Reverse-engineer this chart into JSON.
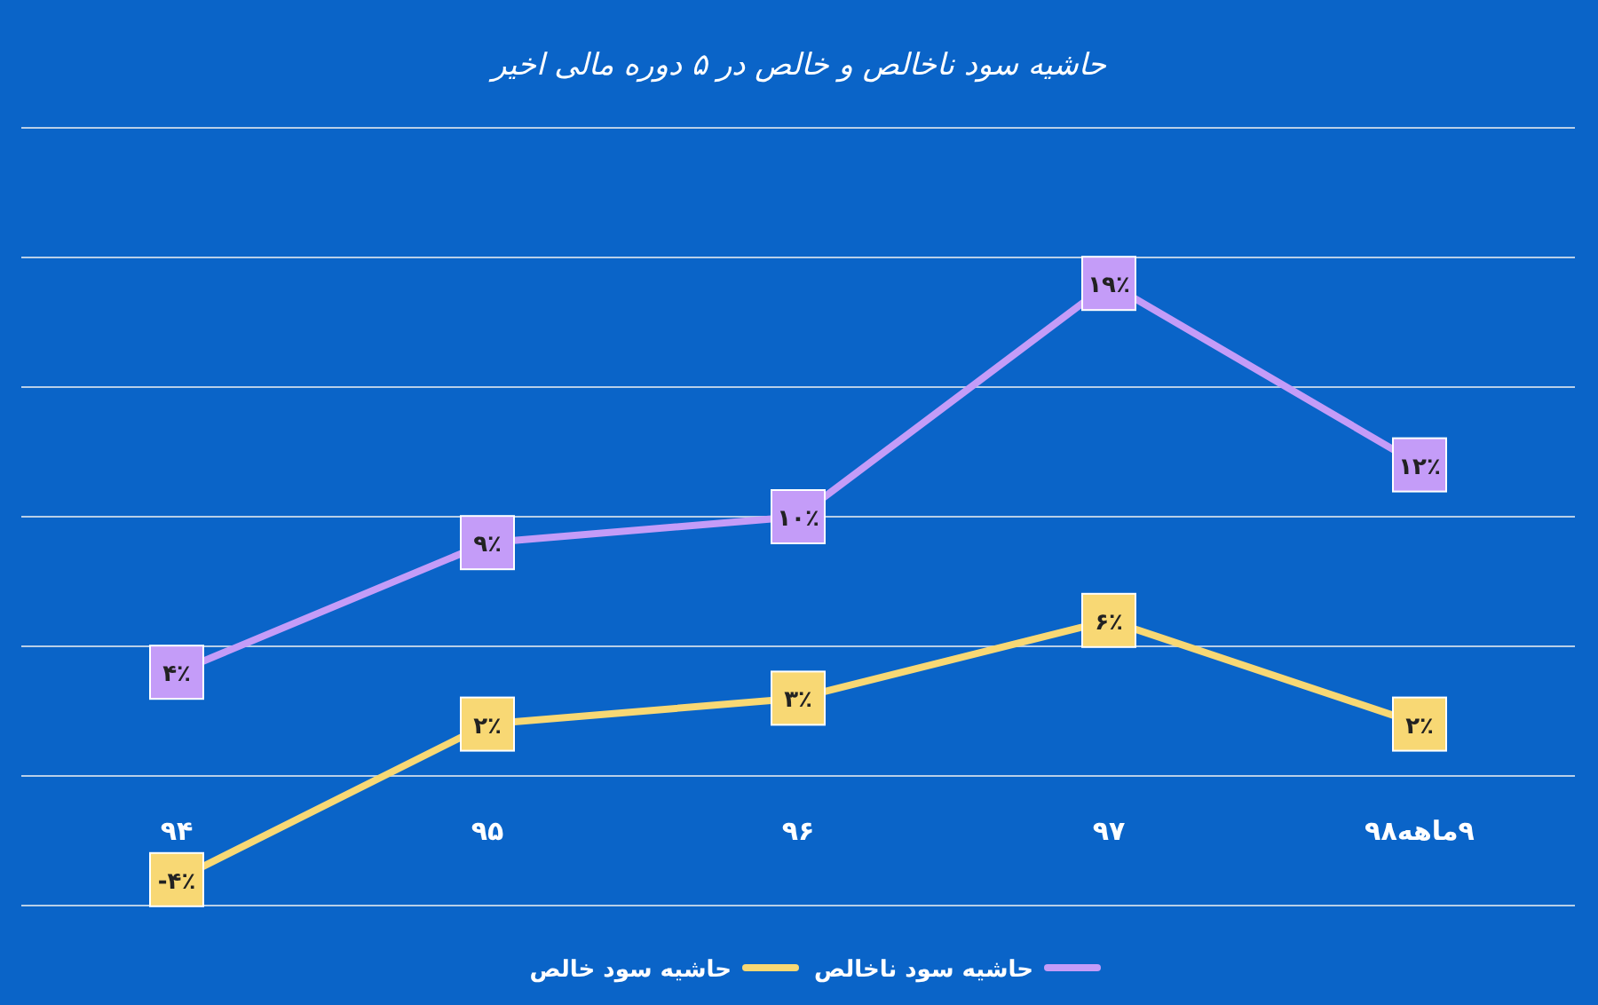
{
  "chart_data": {
    "type": "line",
    "title": "حاشیه سود ناخالص و خالص در ۵ دوره مالی اخیر",
    "categories": [
      "۹۴",
      "۹۵",
      "۹۶",
      "۹۷",
      "۹ماهه۹۸"
    ],
    "series": [
      {
        "name": "حاشیه سود ناخالص",
        "color": "#c49cf8",
        "values": [
          4,
          9,
          10,
          19,
          12
        ],
        "value_labels": [
          "۴٪",
          "۹٪",
          "۱۰٪",
          "۱۹٪",
          "۱۲٪"
        ]
      },
      {
        "name": "حاشیه سود خالص",
        "color": "#f8d874",
        "values": [
          -4,
          2,
          3,
          6,
          2
        ],
        "value_labels": [
          "-۴٪",
          "۲٪",
          "۳٪",
          "۶٪",
          "۲٪"
        ]
      }
    ],
    "ylim": [
      -5,
      25
    ],
    "yticks": [
      {
        "value": -5,
        "label": null
      },
      {
        "value": 0,
        "label": null
      },
      {
        "value": 5,
        "label": null
      },
      {
        "value": 10,
        "label": null
      },
      {
        "value": 15,
        "label": null
      },
      {
        "value": 20,
        "label": null
      },
      {
        "value": 25,
        "label": null
      }
    ],
    "tick_labels": "x",
    "grid": "y",
    "legend": "bottom",
    "marker": "square",
    "line_style": "solid"
  }
}
